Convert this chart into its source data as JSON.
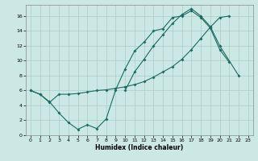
{
  "xlabel": "Humidex (Indice chaleur)",
  "bg_color": "#cce8e4",
  "line_color": "#1a6b60",
  "grid_color": "#aaccc8",
  "xlim": [
    -0.5,
    23.5
  ],
  "ylim": [
    0,
    17.5
  ],
  "xticks": [
    0,
    1,
    2,
    3,
    4,
    5,
    6,
    7,
    8,
    9,
    10,
    11,
    12,
    13,
    14,
    15,
    16,
    17,
    18,
    19,
    20,
    21,
    22,
    23
  ],
  "yticks": [
    0,
    2,
    4,
    6,
    8,
    10,
    12,
    14,
    16
  ],
  "line1_x": [
    0,
    1,
    2,
    3,
    4,
    5,
    6,
    7,
    8,
    9,
    10,
    11,
    12,
    13,
    14,
    15,
    16,
    17,
    18,
    19,
    20,
    21
  ],
  "line1_y": [
    6.0,
    5.5,
    4.5,
    3.0,
    1.7,
    0.8,
    1.4,
    0.9,
    2.2,
    6.1,
    8.9,
    11.3,
    12.5,
    14.0,
    14.3,
    15.8,
    16.0,
    16.7,
    15.8,
    14.4,
    11.5,
    9.8
  ],
  "line2_x": [
    0,
    1,
    2,
    3,
    4,
    5,
    6,
    7,
    8,
    9,
    10,
    11,
    12,
    13,
    14,
    15,
    16,
    17,
    18,
    19,
    20,
    21
  ],
  "line2_y": [
    6.0,
    5.5,
    4.4,
    5.5,
    5.5,
    5.6,
    5.8,
    6.0,
    6.1,
    6.3,
    6.5,
    6.8,
    7.2,
    7.8,
    8.5,
    9.2,
    10.2,
    11.5,
    13.0,
    14.5,
    15.8,
    16.0
  ],
  "line3_x": [
    10,
    11,
    12,
    13,
    14,
    15,
    16,
    17,
    18,
    19,
    20,
    22
  ],
  "line3_y": [
    6.0,
    8.5,
    10.2,
    12.0,
    13.5,
    15.0,
    16.2,
    17.0,
    16.0,
    14.6,
    12.0,
    8.0
  ]
}
